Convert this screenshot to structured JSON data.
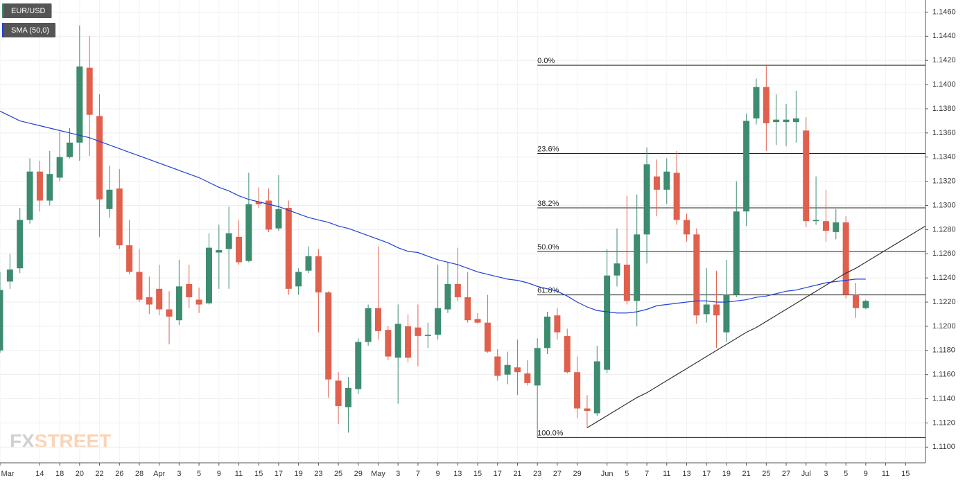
{
  "chart_data": {
    "type": "candlestick",
    "categories": [
      "Mar",
      null,
      null,
      null,
      "14",
      null,
      "18",
      null,
      "20",
      null,
      "22",
      null,
      "26",
      null,
      "28",
      null,
      "Apr",
      null,
      "3",
      null,
      "5",
      null,
      "9",
      null,
      "11",
      null,
      "15",
      null,
      "17",
      null,
      "19",
      null,
      "23",
      null,
      "25",
      null,
      "29",
      null,
      "May",
      null,
      "3",
      null,
      "7",
      null,
      "9",
      null,
      "13",
      null,
      "15",
      null,
      "17",
      null,
      "21",
      null,
      "23",
      null,
      "27",
      null,
      "29",
      null,
      null,
      "Jun",
      null,
      "5",
      null,
      "7",
      null,
      "11",
      null,
      "13",
      null,
      "17",
      null,
      "19",
      null,
      "21",
      null,
      "25",
      null,
      "27",
      null,
      "Jul",
      null,
      "3",
      null,
      "5",
      null,
      "9",
      null,
      "11",
      null,
      "15",
      null,
      null
    ],
    "series": [
      {
        "name": "EUR/USD",
        "color": "#3d8c6f",
        "down_color": "#e0604d",
        "open": [
          1.118,
          1.1237,
          1.1248,
          1.1288,
          1.1328,
          1.1304,
          1.1323,
          1.134,
          1.1352,
          1.1414,
          1.1374,
          1.1297,
          1.1314,
          1.1267,
          1.1245,
          1.1224,
          1.1231,
          1.1214,
          1.1205,
          1.1235,
          1.1222,
          1.1219,
          1.1261,
          1.1264,
          1.1274,
          1.1254,
          1.1303,
          1.1304,
          1.1281,
          1.1298,
          1.1233,
          1.1246,
          1.1258,
          1.1228,
          1.1155,
          1.1133,
          1.1148,
          1.1187,
          1.1215,
          1.1197,
          1.1174,
          1.12,
          1.1199,
          1.1192,
          1.1193,
          1.1214,
          1.1235,
          1.1224,
          1.1206,
          1.1203,
          1.1175,
          1.116,
          1.1166,
          1.1161,
          1.1151,
          1.1182,
          1.1209,
          1.1192,
          1.1162,
          1.1132,
          1.1128,
          1.1164,
          1.1242,
          1.1251,
          1.1221,
          1.1276,
          1.1324,
          1.1313,
          1.1327,
          1.1288,
          1.1276,
          1.121,
          1.1218,
          1.1195,
          1.1226,
          1.1295,
          1.1372,
          1.1398,
          1.1369,
          1.1369,
          1.1369,
          1.1362,
          1.1287,
          1.1287,
          1.1278,
          1.1286,
          1.1226,
          1.1215,
          null,
          null,
          null,
          null,
          null,
          null
        ],
        "high": [
          1.1245,
          1.126,
          1.1298,
          1.1339,
          1.1337,
          1.1345,
          1.1361,
          1.1364,
          1.1449,
          1.144,
          1.1392,
          1.1333,
          1.133,
          1.1288,
          1.1264,
          1.1241,
          1.1251,
          1.1229,
          1.1255,
          1.1251,
          1.1232,
          1.1277,
          1.1284,
          1.1299,
          1.1288,
          1.1327,
          1.1315,
          1.1314,
          1.1325,
          1.1304,
          1.1248,
          1.1266,
          1.1264,
          1.1229,
          1.1162,
          1.1158,
          1.119,
          1.1218,
          1.1266,
          1.12,
          1.1218,
          1.121,
          1.1218,
          1.1203,
          1.1251,
          1.1253,
          1.1265,
          1.1245,
          1.1211,
          1.1226,
          1.1181,
          1.1179,
          1.1189,
          1.1172,
          1.119,
          1.1212,
          1.1215,
          1.1198,
          1.1175,
          1.1143,
          1.1184,
          1.1264,
          1.1281,
          1.1308,
          1.1309,
          1.1348,
          1.1338,
          1.1339,
          1.1345,
          1.1293,
          1.1281,
          1.1248,
          1.1246,
          1.1255,
          1.132,
          1.1376,
          1.1405,
          1.1416,
          1.1392,
          1.1384,
          1.1395,
          1.1373,
          1.1324,
          1.1313,
          1.1297,
          1.1291,
          1.1236,
          1.1222,
          null,
          null,
          null,
          null,
          null,
          null
        ],
        "low": [
          1.1178,
          1.1231,
          1.1244,
          1.1285,
          1.1295,
          1.13,
          1.132,
          1.1339,
          1.1337,
          1.1341,
          1.1274,
          1.129,
          1.1264,
          1.1243,
          1.122,
          1.121,
          1.1209,
          1.1185,
          1.1201,
          1.1215,
          1.1211,
          1.1218,
          1.1231,
          1.1231,
          1.1251,
          1.1253,
          1.1298,
          1.1278,
          1.1279,
          1.1226,
          1.1226,
          1.1244,
          1.1195,
          1.1141,
          1.1119,
          1.1112,
          1.1144,
          1.1184,
          1.1189,
          1.1172,
          1.1136,
          1.117,
          1.1167,
          1.1182,
          1.1189,
          1.1211,
          1.1221,
          1.1203,
          1.1202,
          1.1178,
          1.1155,
          1.1152,
          1.1143,
          1.1151,
          1.1108,
          1.1177,
          1.1189,
          1.1161,
          1.1124,
          1.1116,
          1.1126,
          1.1161,
          1.1233,
          1.1218,
          1.12,
          1.1252,
          1.1291,
          1.1301,
          1.1284,
          1.127,
          1.1202,
          1.1203,
          1.1182,
          1.1187,
          1.1224,
          1.1283,
          1.1367,
          1.1345,
          1.135,
          1.1349,
          1.1352,
          1.1282,
          1.1284,
          1.127,
          1.1272,
          1.1223,
          1.1207,
          1.1214,
          null,
          null,
          null,
          null,
          null,
          null
        ],
        "close": [
          1.123,
          1.1247,
          1.1288,
          1.1328,
          1.1304,
          1.1326,
          1.134,
          1.1352,
          1.1415,
          1.1375,
          1.1305,
          1.1313,
          1.1267,
          1.1245,
          1.1222,
          1.1218,
          1.1214,
          1.1208,
          1.1233,
          1.1224,
          1.1218,
          1.1265,
          1.1263,
          1.1277,
          1.1253,
          1.1301,
          1.1301,
          1.128,
          1.1297,
          1.1231,
          1.1245,
          1.1258,
          1.1228,
          1.1156,
          1.1134,
          1.1149,
          1.1187,
          1.1215,
          1.1196,
          1.1175,
          1.1202,
          1.1174,
          1.1192,
          1.1193,
          1.1215,
          1.1235,
          1.1224,
          1.1205,
          1.1203,
          1.1179,
          1.1159,
          1.1168,
          1.1162,
          1.1153,
          1.1182,
          1.1208,
          1.1195,
          1.1162,
          1.1132,
          1.113,
          1.1171,
          1.1242,
          1.1252,
          1.1221,
          1.1276,
          1.1334,
          1.1313,
          1.1328,
          1.1288,
          1.1276,
          1.1209,
          1.1218,
          1.1209,
          1.1226,
          1.1295,
          1.137,
          1.1398,
          1.1368,
          1.1371,
          1.1371,
          1.1372,
          1.1287,
          1.1288,
          1.1279,
          1.1286,
          1.1226,
          1.1215,
          1.1221,
          null,
          null,
          null,
          null,
          null,
          null
        ]
      },
      {
        "name": "SMA (50,0)",
        "type": "line",
        "color": "#1f3fd6",
        "values": [
          1.1378,
          1.1374,
          1.137,
          1.1368,
          1.1366,
          1.1364,
          1.1362,
          1.136,
          1.1358,
          1.1356,
          1.1353,
          1.135,
          1.1347,
          1.1344,
          1.1341,
          1.1338,
          1.1335,
          1.1332,
          1.1329,
          1.1326,
          1.1323,
          1.1319,
          1.1315,
          1.1312,
          1.1308,
          1.1305,
          1.1303,
          1.1301,
          1.1299,
          1.1296,
          1.1293,
          1.129,
          1.1288,
          1.1286,
          1.1283,
          1.1281,
          1.1278,
          1.1275,
          1.1272,
          1.1269,
          1.1265,
          1.1262,
          1.1261,
          1.1258,
          1.1255,
          1.1253,
          1.1251,
          1.1248,
          1.1245,
          1.1243,
          1.1241,
          1.1239,
          1.1238,
          1.1236,
          1.1233,
          1.1231,
          1.1229,
          1.1225,
          1.122,
          1.1216,
          1.1213,
          1.1212,
          1.1211,
          1.1211,
          1.1212,
          1.1214,
          1.1217,
          1.1218,
          1.1219,
          1.122,
          1.1221,
          1.1221,
          1.122,
          1.122,
          1.1221,
          1.1222,
          1.1224,
          1.1225,
          1.1227,
          1.1229,
          1.123,
          1.1232,
          1.1234,
          1.1236,
          1.1237,
          1.1238,
          1.1239,
          1.1239,
          null,
          null,
          null,
          null,
          null,
          null
        ]
      }
    ],
    "trendline": {
      "color": "#333333",
      "values": [
        null,
        null,
        null,
        null,
        null,
        null,
        null,
        null,
        null,
        null,
        null,
        null,
        null,
        null,
        null,
        null,
        null,
        null,
        null,
        null,
        null,
        null,
        null,
        null,
        null,
        null,
        null,
        null,
        null,
        null,
        null,
        null,
        null,
        null,
        null,
        null,
        null,
        null,
        null,
        null,
        null,
        null,
        null,
        null,
        null,
        null,
        null,
        null,
        null,
        null,
        null,
        null,
        null,
        null,
        null,
        null,
        null,
        null,
        null,
        1.1116,
        1.1121,
        1.1126,
        1.1131,
        1.1136,
        1.1141,
        1.1145,
        1.115,
        1.1155,
        1.116,
        1.1165,
        1.117,
        1.1175,
        1.118,
        1.1185,
        1.119,
        1.1195,
        1.1199,
        1.1204,
        1.1209,
        1.1214,
        1.1219,
        1.1224,
        1.1229,
        1.1234,
        1.1239,
        1.1244,
        1.1248,
        1.1253,
        1.1258,
        1.1263,
        1.1268,
        1.1273,
        1.1278,
        1.1283
      ]
    },
    "fibonacci": [
      {
        "value": 1.1416,
        "label": "0.0%"
      },
      {
        "value": 1.1343,
        "label": "23.6%"
      },
      {
        "value": 1.1298,
        "label": "38.2%"
      },
      {
        "value": 1.1262,
        "label": "50.0%"
      },
      {
        "value": 1.1226,
        "label": "61.8%"
      },
      {
        "value": 1.1108,
        "label": "100.0%"
      }
    ],
    "ylim": [
      1.1087,
      1.147
    ],
    "yticks": [
      {
        "value": 1.11,
        "label": "1.1100"
      },
      {
        "value": 1.112,
        "label": "1.1120"
      },
      {
        "value": 1.114,
        "label": "1.1140"
      },
      {
        "value": 1.116,
        "label": "1.1160"
      },
      {
        "value": 1.118,
        "label": "1.1180"
      },
      {
        "value": 1.12,
        "label": "1.1200"
      },
      {
        "value": 1.122,
        "label": "1.1220"
      },
      {
        "value": 1.124,
        "label": "1.1240"
      },
      {
        "value": 1.126,
        "label": "1.1260"
      },
      {
        "value": 1.128,
        "label": "1.1280"
      },
      {
        "value": 1.13,
        "label": "1.1300"
      },
      {
        "value": 1.132,
        "label": "1.1320"
      },
      {
        "value": 1.134,
        "label": "1.1340"
      },
      {
        "value": 1.136,
        "label": "1.1360"
      },
      {
        "value": 1.138,
        "label": "1.1380"
      },
      {
        "value": 1.14,
        "label": "1.1400"
      },
      {
        "value": 1.142,
        "label": "1.1420"
      },
      {
        "value": 1.144,
        "label": "1.1440"
      },
      {
        "value": 1.146,
        "label": "1.1460"
      }
    ],
    "y_axis_side": "right",
    "grid": true,
    "watermark": {
      "part1": "FX",
      "part2": "STREET"
    }
  }
}
